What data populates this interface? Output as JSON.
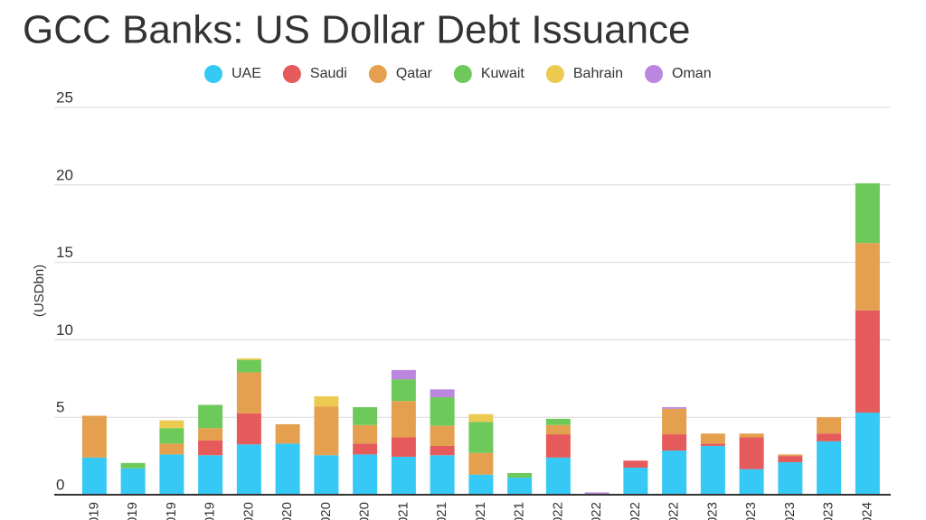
{
  "chart_data": {
    "type": "stacked-bar",
    "title": "GCC Banks: US Dollar Debt Issuance",
    "y_label": "(USDbn)",
    "categories": [
      "019",
      "019",
      "019",
      "019",
      "020",
      "020",
      "020",
      "020",
      "021",
      "021",
      "021",
      "021",
      "022",
      "022",
      "022",
      "022",
      "023",
      "023",
      "023",
      "023",
      "024"
    ],
    "series": [
      {
        "name": "UAE",
        "color": "#36c9f5",
        "values": [
          2.4,
          1.7,
          2.6,
          2.55,
          3.25,
          3.3,
          2.55,
          2.6,
          2.45,
          2.55,
          1.3,
          1.1,
          2.4,
          0,
          1.75,
          2.85,
          3.15,
          1.65,
          2.1,
          3.45,
          5.3
        ]
      },
      {
        "name": "Saudi",
        "color": "#e55a5a",
        "values": [
          0,
          0,
          0,
          0.95,
          2.0,
          0,
          0,
          0.7,
          1.25,
          0.6,
          0,
          0,
          1.5,
          0,
          0.45,
          1.05,
          0.15,
          2.05,
          0.4,
          0.5,
          6.6
        ]
      },
      {
        "name": "Qatar",
        "color": "#e5a04f",
        "values": [
          2.7,
          0,
          0.7,
          0.8,
          2.65,
          1.25,
          3.15,
          1.2,
          2.35,
          1.3,
          1.4,
          0,
          0.6,
          0,
          0,
          1.65,
          0.65,
          0.25,
          0.1,
          1.05,
          4.35
        ]
      },
      {
        "name": "Kuwait",
        "color": "#6dc95a",
        "values": [
          0,
          0.35,
          1.0,
          1.5,
          0.8,
          0,
          0,
          1.15,
          1.4,
          1.85,
          2.0,
          0.3,
          0.4,
          0,
          0,
          0,
          0,
          0,
          0,
          0,
          3.85
        ]
      },
      {
        "name": "Bahrain",
        "color": "#ecc94f",
        "values": [
          0,
          0,
          0.5,
          0,
          0.1,
          0,
          0.65,
          0,
          0,
          0,
          0.5,
          0,
          0,
          0,
          0,
          0,
          0,
          0,
          0,
          0,
          0
        ]
      },
      {
        "name": "Oman",
        "color": "#bb86e0",
        "values": [
          0,
          0,
          0,
          0,
          0,
          0,
          0,
          0,
          0.6,
          0.5,
          0,
          0,
          0,
          0.15,
          0,
          0.1,
          0,
          0,
          0,
          0,
          0
        ]
      }
    ],
    "ylim": [
      0,
      25
    ],
    "yticks": [
      0,
      5,
      10,
      15,
      20,
      25
    ],
    "grid": true
  }
}
